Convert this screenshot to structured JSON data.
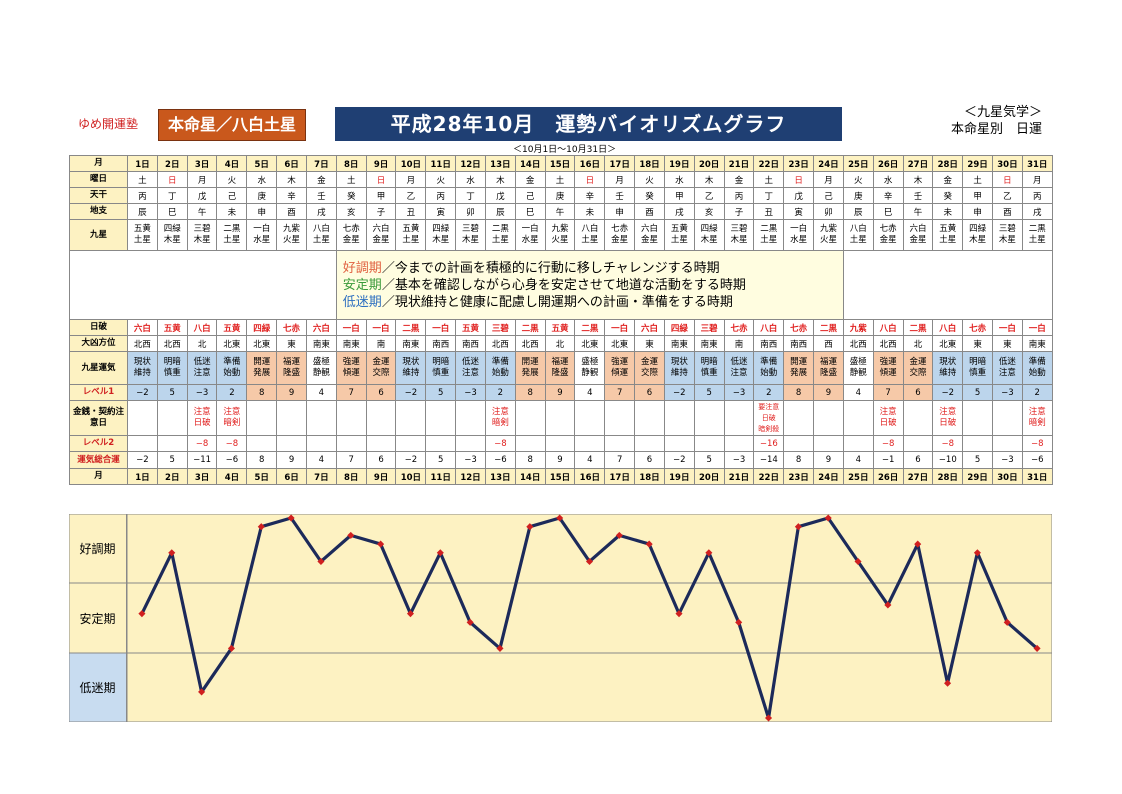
{
  "header": {
    "brand": "ゆめ開運塾",
    "honmei": "本命星／八白土星",
    "title": "平成28年10月　運勢バイオリズムグラフ",
    "subtitle": "＜10月1日～10月31日＞",
    "right_line1": "＜九星気学＞",
    "right_line2": "本命星別　日運"
  },
  "row_labels": {
    "month": "月",
    "weekday": "曜日",
    "tenkan": "天干",
    "chishi": "地支",
    "kyusei": "九星",
    "nichiha": "日破",
    "direction": "大凶方位",
    "kyusei_unki": "九星運気",
    "level1": "レベル1",
    "money": "金銭・契約注意日",
    "level2": "レベル2",
    "total": "運気総合運"
  },
  "legend": {
    "good_term": "好調期",
    "good_text": "／今までの計画を積極的に行動に移しチャレンジする時期",
    "stable_term": "安定期",
    "stable_text": "／基本を確認しながら心身を安定させて地道な活動をする時期",
    "low_term": "低迷期",
    "low_text": "／現状維持と健康に配慮し開運期への計画・準備をする時期"
  },
  "days": [
    "1日",
    "2日",
    "3日",
    "4日",
    "5日",
    "6日",
    "7日",
    "8日",
    "9日",
    "10日",
    "11日",
    "12日",
    "13日",
    "14日",
    "15日",
    "16日",
    "17日",
    "18日",
    "19日",
    "20日",
    "21日",
    "22日",
    "23日",
    "24日",
    "25日",
    "26日",
    "27日",
    "28日",
    "29日",
    "30日",
    "31日"
  ],
  "weekday": [
    "土",
    "日",
    "月",
    "火",
    "水",
    "木",
    "金",
    "土",
    "日",
    "月",
    "火",
    "水",
    "木",
    "金",
    "土",
    "日",
    "月",
    "火",
    "水",
    "木",
    "金",
    "土",
    "日",
    "月",
    "火",
    "水",
    "木",
    "金",
    "土",
    "日",
    "月"
  ],
  "weekday_red": [
    false,
    true,
    false,
    false,
    false,
    false,
    false,
    false,
    true,
    false,
    false,
    false,
    false,
    false,
    false,
    true,
    false,
    false,
    false,
    false,
    false,
    false,
    true,
    false,
    false,
    false,
    false,
    false,
    false,
    true,
    false
  ],
  "tenkan": [
    "丙",
    "丁",
    "戊",
    "己",
    "庚",
    "辛",
    "壬",
    "癸",
    "甲",
    "乙",
    "丙",
    "丁",
    "戊",
    "己",
    "庚",
    "辛",
    "壬",
    "癸",
    "甲",
    "乙",
    "丙",
    "丁",
    "戊",
    "己",
    "庚",
    "辛",
    "壬",
    "癸",
    "甲",
    "乙",
    "丙"
  ],
  "chishi": [
    "辰",
    "巳",
    "午",
    "未",
    "申",
    "酉",
    "戌",
    "亥",
    "子",
    "丑",
    "寅",
    "卯",
    "辰",
    "巳",
    "午",
    "未",
    "申",
    "酉",
    "戌",
    "亥",
    "子",
    "丑",
    "寅",
    "卯",
    "辰",
    "巳",
    "午",
    "未",
    "申",
    "酉",
    "戌"
  ],
  "kyusei": [
    [
      "五黄",
      "土星"
    ],
    [
      "四緑",
      "木星"
    ],
    [
      "三碧",
      "木星"
    ],
    [
      "二黒",
      "土星"
    ],
    [
      "一白",
      "水星"
    ],
    [
      "九紫",
      "火星"
    ],
    [
      "八白",
      "土星"
    ],
    [
      "七赤",
      "金星"
    ],
    [
      "六白",
      "金星"
    ],
    [
      "五黄",
      "土星"
    ],
    [
      "四緑",
      "木星"
    ],
    [
      "三碧",
      "木星"
    ],
    [
      "二黒",
      "土星"
    ],
    [
      "一白",
      "水星"
    ],
    [
      "九紫",
      "火星"
    ],
    [
      "八白",
      "土星"
    ],
    [
      "七赤",
      "金星"
    ],
    [
      "六白",
      "金星"
    ],
    [
      "五黄",
      "土星"
    ],
    [
      "四緑",
      "木星"
    ],
    [
      "三碧",
      "木星"
    ],
    [
      "二黒",
      "土星"
    ],
    [
      "一白",
      "水星"
    ],
    [
      "九紫",
      "火星"
    ],
    [
      "八白",
      "土星"
    ],
    [
      "七赤",
      "金星"
    ],
    [
      "六白",
      "金星"
    ],
    [
      "五黄",
      "土星"
    ],
    [
      "四緑",
      "木星"
    ],
    [
      "三碧",
      "木星"
    ],
    [
      "二黒",
      "土星"
    ]
  ],
  "nichiha": [
    "六白",
    "五黄",
    "八白",
    "五黄",
    "四緑",
    "七赤",
    "六白",
    "一白",
    "一白",
    "二黒",
    "一白",
    "五黄",
    "三碧",
    "二黒",
    "五黄",
    "二黒",
    "一白",
    "六白",
    "四緑",
    "三碧",
    "七赤",
    "八白",
    "七赤",
    "二黒",
    "九紫",
    "八白",
    "二黒",
    "八白",
    "七赤",
    "一白",
    "一白"
  ],
  "direction": [
    "北西",
    "北西",
    "北",
    "北東",
    "北東",
    "東",
    "南東",
    "南東",
    "南",
    "南東",
    "南西",
    "南西",
    "北西",
    "北西",
    "北",
    "北東",
    "北東",
    "東",
    "南東",
    "南東",
    "南",
    "南西",
    "南西",
    "西",
    "北西",
    "北西",
    "北",
    "北東",
    "東",
    "東",
    "南東"
  ],
  "unki": [
    [
      "現状",
      "維持"
    ],
    [
      "明暗",
      "慎重"
    ],
    [
      "低迷",
      "注意"
    ],
    [
      "準備",
      "始動"
    ],
    [
      "開運",
      "発展"
    ],
    [
      "福運",
      "隆盛"
    ],
    [
      "盛極",
      "静観"
    ],
    [
      "強運",
      "傾運"
    ],
    [
      "金運",
      "交際"
    ],
    [
      "現状",
      "維持"
    ],
    [
      "明暗",
      "慎重"
    ],
    [
      "低迷",
      "注意"
    ],
    [
      "準備",
      "始動"
    ],
    [
      "開運",
      "発展"
    ],
    [
      "福運",
      "隆盛"
    ],
    [
      "盛極",
      "静観"
    ],
    [
      "強運",
      "傾運"
    ],
    [
      "金運",
      "交際"
    ],
    [
      "現状",
      "維持"
    ],
    [
      "明暗",
      "慎重"
    ],
    [
      "低迷",
      "注意"
    ],
    [
      "準備",
      "始動"
    ],
    [
      "開運",
      "発展"
    ],
    [
      "福運",
      "隆盛"
    ],
    [
      "盛極",
      "静観"
    ],
    [
      "強運",
      "傾運"
    ],
    [
      "金運",
      "交際"
    ],
    [
      "現状",
      "維持"
    ],
    [
      "明暗",
      "慎重"
    ],
    [
      "低迷",
      "注意"
    ],
    [
      "準備",
      "始動"
    ]
  ],
  "level1": [
    "−2",
    "5",
    "−3",
    "2",
    "8",
    "9",
    "4",
    "7",
    "6",
    "−2",
    "5",
    "−3",
    "2",
    "8",
    "9",
    "4",
    "7",
    "6",
    "−2",
    "5",
    "−3",
    "2",
    "8",
    "9",
    "4",
    "7",
    "6",
    "−2",
    "5",
    "−3",
    "2"
  ],
  "money": [
    "",
    "",
    [
      "注意",
      "日破"
    ],
    [
      "注意",
      "暗剣"
    ],
    "",
    "",
    "",
    "",
    "",
    "",
    "",
    "",
    [
      "注意",
      "暗剣"
    ],
    "",
    "",
    "",
    "",
    "",
    "",
    "",
    "",
    [
      "要注意",
      "日破",
      "暗剣殺"
    ],
    "",
    "",
    "",
    [
      "注意",
      "日破"
    ],
    "",
    [
      "注意",
      "日破"
    ],
    "",
    "",
    [
      "注意",
      "暗剣"
    ]
  ],
  "level2": [
    "",
    "",
    "−8",
    "−8",
    "",
    "",
    "",
    "",
    "",
    "",
    "",
    "",
    "−8",
    "",
    "",
    "",
    "",
    "",
    "",
    "",
    "",
    "−16",
    "",
    "",
    "",
    "−8",
    "",
    "−8",
    "",
    "",
    "−8"
  ],
  "total": [
    "−2",
    "5",
    "−11",
    "−6",
    "8",
    "9",
    "4",
    "7",
    "6",
    "−2",
    "5",
    "−3",
    "−6",
    "8",
    "9",
    "4",
    "7",
    "6",
    "−2",
    "5",
    "−3",
    "−14",
    "8",
    "9",
    "4",
    "−1",
    "6",
    "−10",
    "5",
    "−3",
    "−6"
  ],
  "chart_bands": {
    "good": "好調期",
    "stable": "安定期",
    "low": "低迷期"
  },
  "chart_data": {
    "type": "line",
    "x": [
      "1日",
      "2日",
      "3日",
      "4日",
      "5日",
      "6日",
      "7日",
      "8日",
      "9日",
      "10日",
      "11日",
      "12日",
      "13日",
      "14日",
      "15日",
      "16日",
      "17日",
      "18日",
      "19日",
      "20日",
      "21日",
      "22日",
      "23日",
      "24日",
      "25日",
      "26日",
      "27日",
      "28日",
      "29日",
      "30日",
      "31日"
    ],
    "series": [
      {
        "values": [
          -2,
          5,
          -11,
          -6,
          8,
          9,
          4,
          7,
          6,
          -2,
          5,
          -3,
          -6,
          8,
          9,
          4,
          7,
          6,
          -2,
          5,
          -3,
          -14,
          8,
          9,
          4,
          -1,
          6,
          -10,
          5,
          -3,
          -6
        ]
      }
    ],
    "ylim": [
      -14,
      9
    ],
    "line_color": "#1c2a5a",
    "marker_color": "#d02020"
  }
}
